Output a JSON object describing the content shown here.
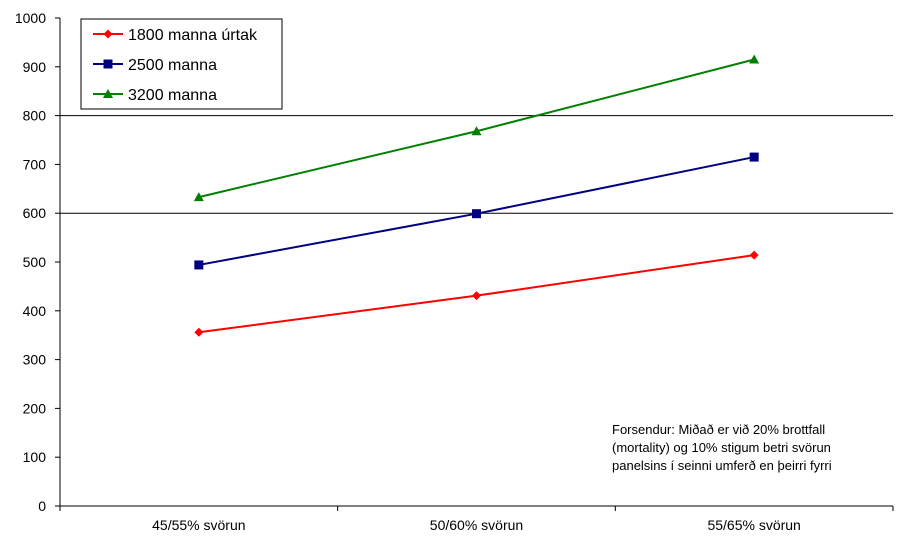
{
  "chart_data": {
    "type": "line",
    "categories": [
      "45/55% svörun",
      "50/60% svörun",
      "55/65% svörun"
    ],
    "series": [
      {
        "name": "1800 manna úrtak",
        "values": [
          356,
          431,
          514
        ],
        "color": "#ff0000",
        "marker": "diamond"
      },
      {
        "name": "2500 manna",
        "values": [
          494,
          599,
          715
        ],
        "color": "#000080",
        "marker": "square"
      },
      {
        "name": "3200 manna",
        "values": [
          633,
          768,
          915
        ],
        "color": "#008000",
        "marker": "triangle"
      }
    ],
    "ylim": [
      0,
      1000
    ],
    "yticks": [
      0,
      100,
      200,
      300,
      400,
      500,
      600,
      700,
      800,
      900,
      1000
    ],
    "gridlines": [
      600,
      800
    ],
    "title": "",
    "xlabel": "",
    "ylabel": "",
    "legend_position": "top-left",
    "annotation": [
      "Forsendur:  Miðað er við 20% brottfall",
      "(mortality) og 10% stigum betri svörun",
      "panelsins í seinni umferð en þeirri fyrri"
    ]
  }
}
